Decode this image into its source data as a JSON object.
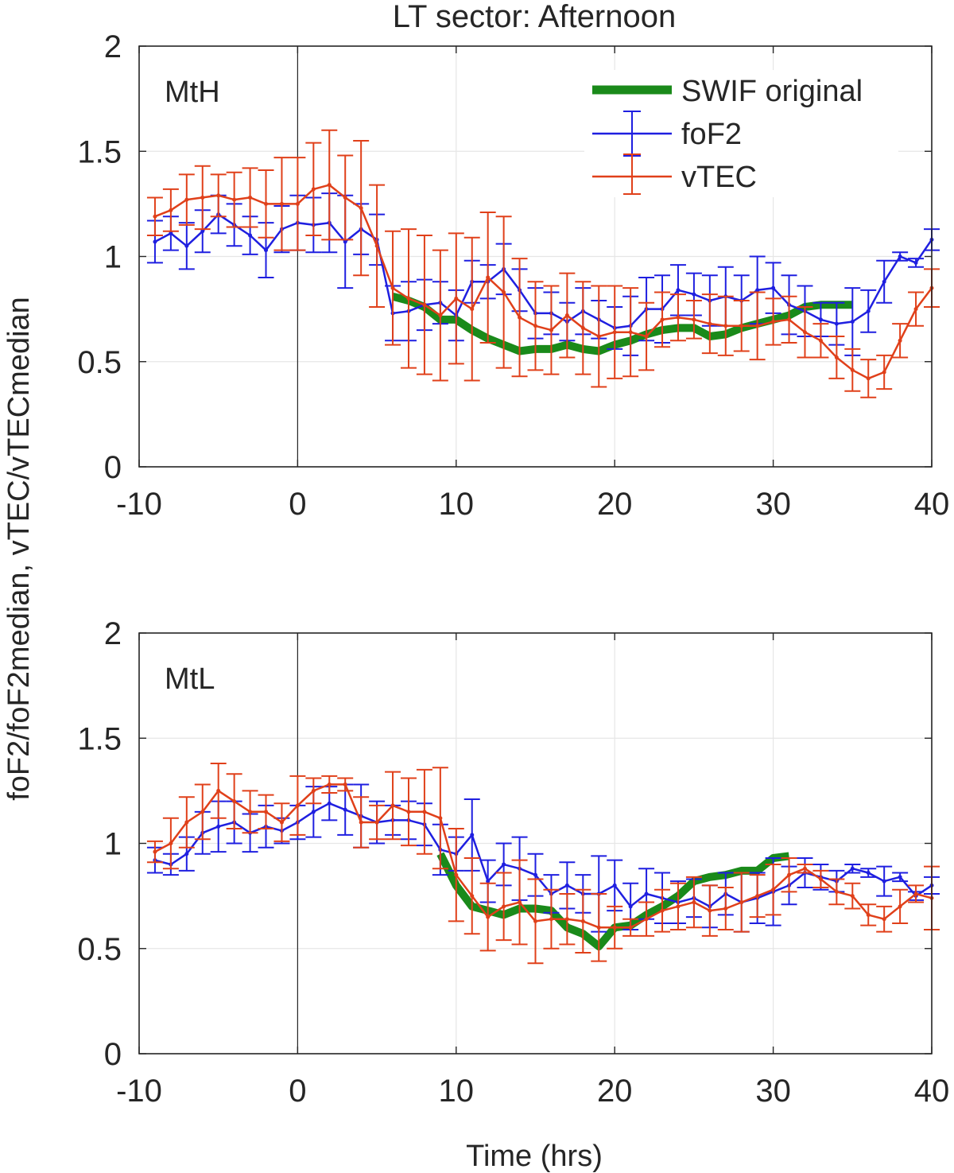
{
  "figure": {
    "title": "LT sector: Afternoon",
    "ylabel": "foF2/foF2median, vTEC/vTECmedian",
    "xlabel": "Time (hrs)",
    "colors": {
      "swif": "#1a8a1a",
      "fof2": "#1f1fe0",
      "vtec": "#e0401a",
      "axis": "#262626",
      "grid": "#e6e6e6"
    }
  },
  "legend": {
    "swif": "SWIF original",
    "fof2": "foF2",
    "vtec": "vTEC"
  },
  "chart_data": [
    {
      "type": "line",
      "panel": "MtH",
      "label": "MtH",
      "xlim": [
        -10,
        40
      ],
      "ylim": [
        0,
        2
      ],
      "xticks": [
        -10,
        0,
        10,
        20,
        30,
        40
      ],
      "yticks": [
        0,
        0.5,
        1,
        1.5,
        2
      ],
      "xtick_labels": [
        "-10",
        "0",
        "10",
        "20",
        "30",
        "40"
      ],
      "ytick_labels": [
        "0",
        "0.5",
        "1",
        "1.5",
        "2"
      ],
      "grid": true,
      "legend_position": "top-right",
      "series": [
        {
          "name": "SWIF original",
          "x": [
            6,
            7,
            8,
            9,
            10,
            11,
            12,
            13,
            14,
            15,
            16,
            17,
            18,
            19,
            20,
            21,
            22,
            23,
            24,
            25,
            26,
            27,
            28,
            29,
            30,
            31,
            32,
            33,
            34,
            35
          ],
          "y": [
            0.81,
            0.79,
            0.76,
            0.7,
            0.7,
            0.65,
            0.61,
            0.58,
            0.55,
            0.56,
            0.56,
            0.58,
            0.56,
            0.55,
            0.58,
            0.6,
            0.63,
            0.65,
            0.66,
            0.66,
            0.62,
            0.63,
            0.66,
            0.68,
            0.7,
            0.72,
            0.76,
            0.77,
            0.77,
            0.77
          ]
        },
        {
          "name": "foF2",
          "x": [
            -9,
            -8,
            -7,
            -6,
            -5,
            -4,
            -3,
            -2,
            -1,
            0,
            1,
            2,
            3,
            4,
            5,
            6,
            7,
            8,
            9,
            10,
            11,
            12,
            13,
            14,
            15,
            16,
            17,
            18,
            19,
            20,
            21,
            22,
            23,
            24,
            25,
            26,
            27,
            28,
            29,
            30,
            31,
            32,
            33,
            34,
            35,
            36,
            37,
            38,
            39,
            40
          ],
          "y": [
            1.07,
            1.11,
            1.05,
            1.12,
            1.2,
            1.15,
            1.1,
            1.03,
            1.13,
            1.16,
            1.15,
            1.16,
            1.07,
            1.13,
            1.08,
            0.73,
            0.74,
            0.77,
            0.78,
            0.72,
            0.88,
            0.88,
            0.94,
            0.84,
            0.73,
            0.73,
            0.69,
            0.74,
            0.7,
            0.66,
            0.67,
            0.75,
            0.75,
            0.84,
            0.82,
            0.79,
            0.81,
            0.79,
            0.84,
            0.85,
            0.77,
            0.74,
            0.7,
            0.68,
            0.69,
            0.74,
            0.88,
            1.0,
            0.97,
            1.08
          ],
          "err": [
            0.1,
            0.08,
            0.11,
            0.1,
            0.09,
            0.1,
            0.09,
            0.13,
            0.11,
            0.13,
            0.13,
            0.14,
            0.22,
            0.12,
            0.12,
            0.13,
            0.14,
            0.12,
            0.1,
            0.12,
            0.1,
            0.08,
            0.12,
            0.1,
            0.12,
            0.1,
            0.09,
            0.11,
            0.09,
            0.1,
            0.14,
            0.15,
            0.16,
            0.12,
            0.1,
            0.12,
            0.14,
            0.12,
            0.16,
            0.12,
            0.14,
            0.12,
            0.08,
            0.1,
            0.16,
            0.1,
            0.1,
            0.02,
            0.02,
            0.05
          ]
        },
        {
          "name": "vTEC",
          "x": [
            -9,
            -8,
            -7,
            -6,
            -5,
            -4,
            -3,
            -2,
            -1,
            0,
            1,
            2,
            3,
            4,
            5,
            6,
            7,
            8,
            9,
            10,
            11,
            12,
            13,
            14,
            15,
            16,
            17,
            18,
            19,
            20,
            21,
            22,
            23,
            24,
            25,
            26,
            27,
            28,
            29,
            30,
            31,
            32,
            33,
            34,
            35,
            36,
            37,
            38,
            39,
            40
          ],
          "y": [
            1.19,
            1.22,
            1.27,
            1.28,
            1.29,
            1.27,
            1.28,
            1.25,
            1.25,
            1.25,
            1.32,
            1.34,
            1.28,
            1.23,
            1.05,
            0.85,
            0.8,
            0.77,
            0.72,
            0.8,
            0.75,
            0.9,
            0.83,
            0.71,
            0.67,
            0.65,
            0.72,
            0.66,
            0.62,
            0.64,
            0.64,
            0.62,
            0.7,
            0.71,
            0.7,
            0.68,
            0.67,
            0.67,
            0.67,
            0.69,
            0.7,
            0.64,
            0.6,
            0.52,
            0.46,
            0.42,
            0.45,
            0.6,
            0.75,
            0.85
          ],
          "err": [
            0.09,
            0.1,
            0.12,
            0.15,
            0.1,
            0.13,
            0.14,
            0.16,
            0.22,
            0.22,
            0.22,
            0.26,
            0.2,
            0.32,
            0.29,
            0.27,
            0.33,
            0.33,
            0.31,
            0.31,
            0.34,
            0.31,
            0.36,
            0.28,
            0.21,
            0.21,
            0.2,
            0.22,
            0.24,
            0.22,
            0.21,
            0.16,
            0.13,
            0.11,
            0.09,
            0.14,
            0.14,
            0.12,
            0.16,
            0.11,
            0.11,
            0.12,
            0.08,
            0.1,
            0.1,
            0.09,
            0.08,
            0.08,
            0.08,
            0.09
          ]
        }
      ]
    },
    {
      "type": "line",
      "panel": "MtL",
      "label": "MtL",
      "xlim": [
        -10,
        40
      ],
      "ylim": [
        0,
        2
      ],
      "xticks": [
        -10,
        0,
        10,
        20,
        30,
        40
      ],
      "yticks": [
        0,
        0.5,
        1,
        1.5,
        2
      ],
      "xtick_labels": [
        "-10",
        "0",
        "10",
        "20",
        "30",
        "40"
      ],
      "ytick_labels": [
        "0",
        "0.5",
        "1",
        "1.5",
        "2"
      ],
      "grid": true,
      "series": [
        {
          "name": "SWIF original",
          "x": [
            9,
            10,
            11,
            12,
            13,
            14,
            15,
            16,
            17,
            18,
            19,
            20,
            21,
            22,
            23,
            24,
            25,
            26,
            27,
            28,
            29,
            30,
            31
          ],
          "y": [
            0.95,
            0.8,
            0.7,
            0.68,
            0.66,
            0.69,
            0.69,
            0.68,
            0.6,
            0.57,
            0.51,
            0.6,
            0.61,
            0.66,
            0.7,
            0.75,
            0.82,
            0.84,
            0.85,
            0.87,
            0.87,
            0.93,
            0.94
          ]
        },
        {
          "name": "foF2",
          "x": [
            -9,
            -8,
            -7,
            -6,
            -5,
            -4,
            -3,
            -2,
            -1,
            0,
            1,
            2,
            3,
            4,
            5,
            6,
            7,
            8,
            9,
            10,
            11,
            12,
            13,
            14,
            15,
            16,
            17,
            18,
            19,
            20,
            21,
            22,
            23,
            24,
            25,
            26,
            27,
            28,
            29,
            30,
            31,
            32,
            33,
            34,
            35,
            36,
            37,
            38,
            39,
            40
          ],
          "y": [
            0.92,
            0.9,
            0.95,
            1.05,
            1.08,
            1.1,
            1.05,
            1.08,
            1.06,
            1.1,
            1.15,
            1.19,
            1.16,
            1.13,
            1.1,
            1.11,
            1.11,
            1.09,
            0.97,
            0.95,
            1.04,
            0.82,
            0.9,
            0.88,
            0.85,
            0.76,
            0.8,
            0.76,
            0.76,
            0.8,
            0.7,
            0.76,
            0.74,
            0.72,
            0.74,
            0.7,
            0.76,
            0.72,
            0.74,
            0.77,
            0.8,
            0.86,
            0.84,
            0.82,
            0.88,
            0.86,
            0.82,
            0.84,
            0.75,
            0.8
          ],
          "err": [
            0.06,
            0.05,
            0.08,
            0.1,
            0.12,
            0.1,
            0.09,
            0.1,
            0.06,
            0.08,
            0.12,
            0.08,
            0.12,
            0.15,
            0.1,
            0.07,
            0.09,
            0.1,
            0.12,
            0.08,
            0.17,
            0.1,
            0.1,
            0.15,
            0.1,
            0.09,
            0.11,
            0.09,
            0.18,
            0.12,
            0.11,
            0.12,
            0.12,
            0.1,
            0.09,
            0.1,
            0.1,
            0.14,
            0.12,
            0.16,
            0.09,
            0.07,
            0.06,
            0.05,
            0.02,
            0.02,
            0.07,
            0.02,
            0.02,
            0.04
          ]
        },
        {
          "name": "vTEC",
          "x": [
            -9,
            -8,
            -7,
            -6,
            -5,
            -4,
            -3,
            -2,
            -1,
            0,
            1,
            2,
            3,
            4,
            5,
            6,
            7,
            8,
            9,
            10,
            11,
            12,
            13,
            14,
            15,
            16,
            17,
            18,
            19,
            20,
            21,
            22,
            23,
            24,
            25,
            26,
            27,
            28,
            29,
            30,
            31,
            32,
            33,
            34,
            35,
            36,
            37,
            38,
            39,
            40
          ],
          "y": [
            0.96,
            1.0,
            1.1,
            1.15,
            1.25,
            1.2,
            1.15,
            1.15,
            1.1,
            1.18,
            1.25,
            1.28,
            1.28,
            1.1,
            1.1,
            1.18,
            1.15,
            1.15,
            1.12,
            0.85,
            0.75,
            0.65,
            0.7,
            0.72,
            0.63,
            0.64,
            0.64,
            0.63,
            0.6,
            0.6,
            0.6,
            0.64,
            0.68,
            0.7,
            0.72,
            0.68,
            0.69,
            0.72,
            0.75,
            0.78,
            0.85,
            0.88,
            0.83,
            0.77,
            0.75,
            0.66,
            0.64,
            0.7,
            0.76,
            0.74
          ],
          "err": [
            0.05,
            0.12,
            0.12,
            0.13,
            0.13,
            0.13,
            0.1,
            0.08,
            0.09,
            0.14,
            0.06,
            0.04,
            0.03,
            0.12,
            0.08,
            0.16,
            0.16,
            0.2,
            0.24,
            0.22,
            0.18,
            0.16,
            0.16,
            0.2,
            0.2,
            0.14,
            0.12,
            0.15,
            0.16,
            0.1,
            0.04,
            0.08,
            0.1,
            0.11,
            0.12,
            0.12,
            0.1,
            0.14,
            0.1,
            0.12,
            0.08,
            0.02,
            0.04,
            0.06,
            0.06,
            0.05,
            0.06,
            0.08,
            0.04,
            0.15
          ]
        }
      ]
    }
  ]
}
